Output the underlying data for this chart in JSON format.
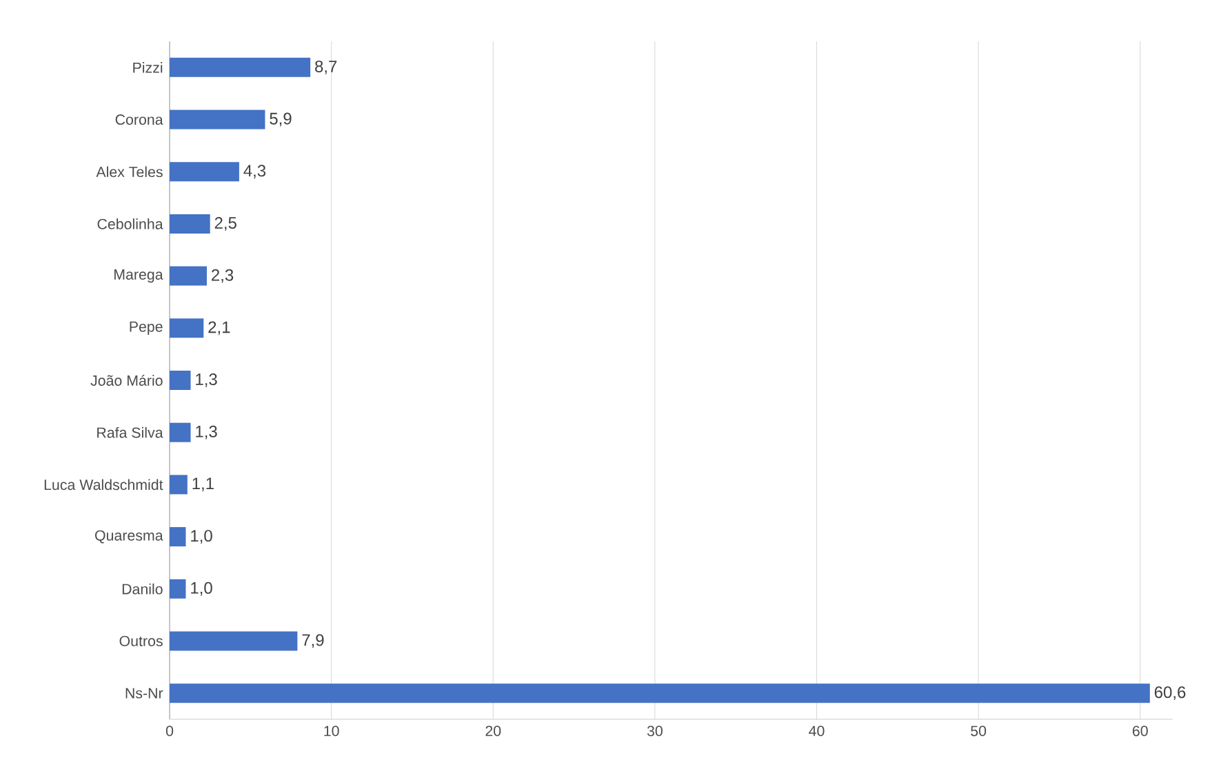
{
  "chart_data": {
    "type": "bar",
    "orientation": "horizontal",
    "categories": [
      "Pizzi",
      "Corona",
      "Alex Teles",
      "Cebolinha",
      "Marega",
      "Pepe",
      "João Mário",
      "Rafa Silva",
      "Luca Waldschmidt",
      "Quaresma",
      "Danilo",
      "Outros",
      "Ns-Nr"
    ],
    "values": [
      8.7,
      5.9,
      4.3,
      2.5,
      2.3,
      2.1,
      1.3,
      1.3,
      1.1,
      1.0,
      1.0,
      7.9,
      60.6
    ],
    "value_labels": [
      "8,7",
      "5,9",
      "4,3",
      "2,5",
      "2,3",
      "2,1",
      "1,3",
      "1,3",
      "1,1",
      "1,0",
      "1,0",
      "7,9",
      "60,6"
    ],
    "color": "#4472c4",
    "xlim": [
      0,
      62
    ],
    "xticks": [
      0,
      10,
      20,
      30,
      40,
      50,
      60
    ],
    "grid": "x"
  }
}
